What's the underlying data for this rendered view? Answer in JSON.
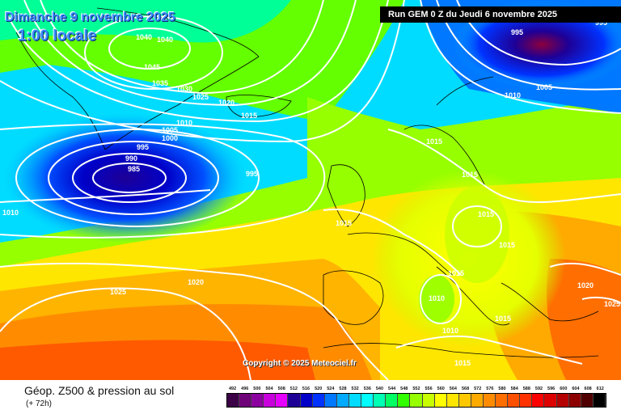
{
  "map": {
    "date_line": "Dimanche 9 novembre 2025",
    "time_line": "1:00 locale",
    "run_info": "Run GEM 0 Z du Jeudi 6 novembre 2025",
    "copyright": "Copyright © 2025 Meteociel.fr",
    "isobar_labels": [
      {
        "id": "p1040-a",
        "text": "1040"
      },
      {
        "id": "p1040-b",
        "text": "1040"
      },
      {
        "id": "p1045",
        "text": "1045"
      },
      {
        "id": "p1035",
        "text": "1035"
      },
      {
        "id": "p1030",
        "text": "1030"
      },
      {
        "id": "p1025-north",
        "text": "1025"
      },
      {
        "id": "p1020-north",
        "text": "1020"
      },
      {
        "id": "p1015-iceland",
        "text": "1015"
      },
      {
        "id": "p1010-iceland",
        "text": "1010"
      },
      {
        "id": "p1005-iceland",
        "text": "1005"
      },
      {
        "id": "p1000",
        "text": "1000"
      },
      {
        "id": "p995-west",
        "text": "995"
      },
      {
        "id": "p990",
        "text": "990"
      },
      {
        "id": "p985",
        "text": "985"
      },
      {
        "id": "p995-east",
        "text": "995"
      },
      {
        "id": "p1010-west",
        "text": "1010"
      },
      {
        "id": "p995-north",
        "text": "995"
      },
      {
        "id": "p1005-north",
        "text": "1005"
      },
      {
        "id": "p1010-scand",
        "text": "1010"
      },
      {
        "id": "p1015-norway",
        "text": "1015"
      },
      {
        "id": "p1015-baltic",
        "text": "1015"
      },
      {
        "id": "p1015-uk",
        "text": "1015"
      },
      {
        "id": "p1015-poland",
        "text": "1015"
      },
      {
        "id": "p1015-hungary",
        "text": "1015"
      },
      {
        "id": "p1015-italy",
        "text": "1015"
      },
      {
        "id": "p1010-tyrrhenian",
        "text": "1010"
      },
      {
        "id": "p1010-south",
        "text": "1010"
      },
      {
        "id": "p1015-greece",
        "text": "1015"
      },
      {
        "id": "p1015-africa",
        "text": "1015"
      },
      {
        "id": "p1020-east",
        "text": "1020"
      },
      {
        "id": "p1025-east",
        "text": "1025"
      },
      {
        "id": "p1025-atlantic",
        "text": "1025"
      },
      {
        "id": "p1020-atlantic",
        "text": "1020"
      },
      {
        "id": "p995-ne",
        "text": "995"
      }
    ]
  },
  "footer": {
    "title": "Géop. Z500 & pression au sol",
    "step": "(+ 72h)"
  },
  "legend": {
    "labels": [
      "492",
      "496",
      "500",
      "504",
      "508",
      "512",
      "516",
      "520",
      "524",
      "528",
      "532",
      "536",
      "540",
      "544",
      "548",
      "552",
      "556",
      "560",
      "564",
      "568",
      "572",
      "576",
      "580",
      "584",
      "588",
      "592",
      "596",
      "600",
      "604",
      "608",
      "612"
    ],
    "colors": [
      "#3c0046",
      "#6e0078",
      "#8c00a0",
      "#c800dc",
      "#e600ff",
      "#1e0096",
      "#0000c8",
      "#0032ff",
      "#0078ff",
      "#00aaff",
      "#00dcff",
      "#00ffff",
      "#00ffb4",
      "#00ff64",
      "#32ff00",
      "#96ff00",
      "#c8ff00",
      "#ffff00",
      "#ffe600",
      "#ffc800",
      "#ffaa00",
      "#ff8c00",
      "#ff6e00",
      "#ff5000",
      "#ff3200",
      "#ff0000",
      "#dc0000",
      "#b40000",
      "#8c0000",
      "#500000",
      "#000000"
    ]
  }
}
